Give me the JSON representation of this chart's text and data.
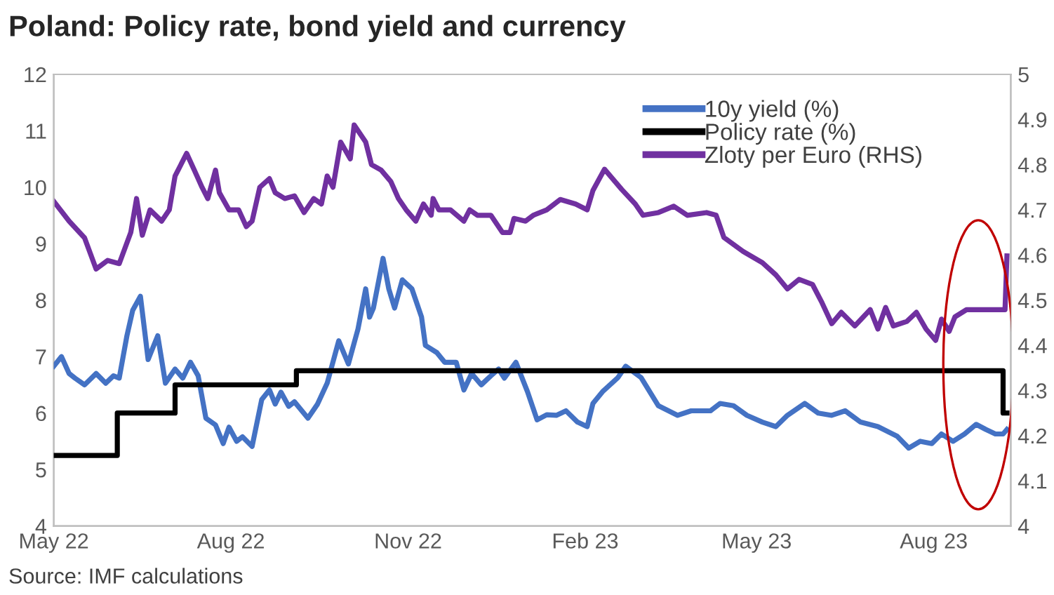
{
  "chart_data": {
    "type": "line",
    "title": "Poland: Policy rate, bond yield and currency",
    "annotations": [
      "Source: IMF calculations"
    ],
    "legend": "top right",
    "grid": false,
    "marker": "none",
    "line_style": "solid",
    "xlim": [
      "2022-05-01",
      "2023-09-10"
    ],
    "xticks": [
      {
        "value": "2022-05-01",
        "label": "May 22"
      },
      {
        "value": "2022-08-01",
        "label": "Aug 22"
      },
      {
        "value": "2022-11-01",
        "label": "Nov 22"
      },
      {
        "value": "2023-02-01",
        "label": "Feb 23"
      },
      {
        "value": "2023-05-01",
        "label": "May 23"
      },
      {
        "value": "2023-08-01",
        "label": "Aug 23"
      }
    ],
    "ylim": [
      4,
      12
    ],
    "yticks": [
      4,
      5,
      6,
      7,
      8,
      9,
      10,
      11,
      12
    ],
    "y2lim": [
      4,
      5
    ],
    "y2ticks": [
      4,
      4.1,
      4.2,
      4.3,
      4.4,
      4.5,
      4.6,
      4.7,
      4.8,
      4.9,
      5
    ],
    "series": [
      {
        "name": "10y yield (%)",
        "color": "#4472c4",
        "x": [
          "2022-05-01",
          "2022-05-05",
          "2022-05-09",
          "2022-05-12",
          "2022-05-17",
          "2022-05-23",
          "2022-05-28",
          "2022-06-01",
          "2022-06-04",
          "2022-06-08",
          "2022-06-11",
          "2022-06-15",
          "2022-06-19",
          "2022-06-24",
          "2022-06-28",
          "2022-07-03",
          "2022-07-07",
          "2022-07-11",
          "2022-07-15",
          "2022-07-19",
          "2022-07-24",
          "2022-07-28",
          "2022-07-31",
          "2022-08-04",
          "2022-08-07",
          "2022-08-12",
          "2022-08-17",
          "2022-08-21",
          "2022-08-24",
          "2022-08-27",
          "2022-08-31",
          "2022-09-03",
          "2022-09-10",
          "2022-09-15",
          "2022-09-20",
          "2022-09-26",
          "2022-10-01",
          "2022-10-06",
          "2022-10-10",
          "2022-10-12",
          "2022-10-14",
          "2022-10-19",
          "2022-10-22",
          "2022-10-25",
          "2022-10-29",
          "2022-11-03",
          "2022-11-08",
          "2022-11-10",
          "2022-11-16",
          "2022-11-20",
          "2022-11-26",
          "2022-11-30",
          "2022-12-04",
          "2022-12-09",
          "2022-12-14",
          "2022-12-18",
          "2022-12-21",
          "2022-12-27",
          "2023-01-02",
          "2023-01-07",
          "2023-01-12",
          "2023-01-17",
          "2023-01-22",
          "2023-01-28",
          "2023-02-02",
          "2023-02-05",
          "2023-02-10",
          "2023-02-18",
          "2023-02-22",
          "2023-03-02",
          "2023-03-11",
          "2023-03-21",
          "2023-03-28",
          "2023-04-07",
          "2023-04-12",
          "2023-04-19",
          "2023-04-26",
          "2023-05-04",
          "2023-05-11",
          "2023-05-17",
          "2023-05-26",
          "2023-06-02",
          "2023-06-09",
          "2023-06-16",
          "2023-06-24",
          "2023-07-03",
          "2023-07-13",
          "2023-07-19",
          "2023-07-25",
          "2023-07-31",
          "2023-08-05",
          "2023-08-11",
          "2023-08-17",
          "2023-08-23",
          "2023-08-28",
          "2023-09-02",
          "2023-09-06",
          "2023-09-08"
        ],
        "values": [
          6.83,
          7.0,
          6.7,
          6.62,
          6.5,
          6.7,
          6.53,
          6.66,
          6.62,
          7.37,
          7.82,
          8.07,
          6.95,
          7.37,
          6.53,
          6.78,
          6.62,
          6.9,
          6.66,
          5.91,
          5.79,
          5.46,
          5.75,
          5.5,
          5.58,
          5.41,
          6.24,
          6.41,
          6.16,
          6.37,
          6.12,
          6.2,
          5.91,
          6.16,
          6.53,
          7.28,
          6.87,
          7.49,
          8.2,
          7.7,
          7.86,
          8.74,
          8.2,
          7.86,
          8.36,
          8.2,
          7.7,
          7.2,
          7.07,
          6.9,
          6.9,
          6.41,
          6.7,
          6.5,
          6.66,
          6.78,
          6.62,
          6.9,
          6.38,
          5.88,
          5.97,
          5.96,
          6.04,
          5.84,
          5.76,
          6.17,
          6.38,
          6.63,
          6.83,
          6.63,
          6.13,
          5.96,
          6.04,
          6.04,
          6.17,
          6.13,
          5.96,
          5.84,
          5.76,
          5.96,
          6.17,
          6.0,
          5.96,
          6.04,
          5.84,
          5.76,
          5.59,
          5.38,
          5.5,
          5.46,
          5.63,
          5.5,
          5.63,
          5.8,
          5.71,
          5.63,
          5.63,
          5.71
        ]
      },
      {
        "name": "Policy rate (%)",
        "color": "#000000",
        "type": "step",
        "x": [
          "2022-05-01",
          "2022-06-03",
          "2022-07-03",
          "2022-09-04",
          "2023-09-06",
          "2023-09-08"
        ],
        "values": [
          5.25,
          6.0,
          6.5,
          6.75,
          6.0,
          6.0
        ]
      },
      {
        "name": "Zloty per Euro (RHS)",
        "color": "#7030a0",
        "axis": "y2",
        "x": [
          "2022-05-01",
          "2022-05-09",
          "2022-05-17",
          "2022-05-23",
          "2022-05-29",
          "2022-06-04",
          "2022-06-10",
          "2022-06-13",
          "2022-06-16",
          "2022-06-20",
          "2022-06-26",
          "2022-06-30",
          "2022-07-03",
          "2022-07-09",
          "2022-07-13",
          "2022-07-17",
          "2022-07-20",
          "2022-07-24",
          "2022-07-26",
          "2022-07-31",
          "2022-08-05",
          "2022-08-09",
          "2022-08-12",
          "2022-08-16",
          "2022-08-21",
          "2022-08-24",
          "2022-08-29",
          "2022-09-03",
          "2022-09-08",
          "2022-09-13",
          "2022-09-17",
          "2022-09-20",
          "2022-09-23",
          "2022-09-27",
          "2022-10-02",
          "2022-10-04",
          "2022-10-10",
          "2022-10-13",
          "2022-10-18",
          "2022-10-23",
          "2022-10-27",
          "2022-10-31",
          "2022-11-05",
          "2022-11-09",
          "2022-11-13",
          "2022-11-14",
          "2022-11-17",
          "2022-11-23",
          "2022-11-30",
          "2022-12-03",
          "2022-12-07",
          "2022-12-14",
          "2022-12-20",
          "2022-12-24",
          "2022-12-26",
          "2023-01-01",
          "2023-01-05",
          "2023-01-12",
          "2023-01-19",
          "2023-01-27",
          "2023-02-02",
          "2023-02-05",
          "2023-02-11",
          "2023-02-20",
          "2023-02-27",
          "2023-03-03",
          "2023-03-11",
          "2023-03-19",
          "2023-03-26",
          "2023-04-05",
          "2023-04-10",
          "2023-04-14",
          "2023-04-24",
          "2023-05-04",
          "2023-05-11",
          "2023-05-17",
          "2023-05-23",
          "2023-05-30",
          "2023-06-04",
          "2023-06-09",
          "2023-06-14",
          "2023-06-21",
          "2023-06-29",
          "2023-07-03",
          "2023-07-07",
          "2023-07-11",
          "2023-07-18",
          "2023-07-23",
          "2023-07-28",
          "2023-08-02",
          "2023-08-05",
          "2023-08-09",
          "2023-08-12",
          "2023-08-18",
          "2023-08-26",
          "2023-09-07",
          "2023-09-08"
        ],
        "values": [
          4.719,
          4.675,
          4.638,
          4.569,
          4.588,
          4.581,
          4.65,
          4.725,
          4.644,
          4.7,
          4.675,
          4.7,
          4.775,
          4.825,
          4.788,
          4.75,
          4.725,
          4.788,
          4.738,
          4.7,
          4.7,
          4.663,
          4.675,
          4.75,
          4.769,
          4.738,
          4.725,
          4.731,
          4.694,
          4.725,
          4.713,
          4.775,
          4.75,
          4.85,
          4.813,
          4.888,
          4.85,
          4.8,
          4.788,
          4.763,
          4.725,
          4.7,
          4.675,
          4.713,
          4.688,
          4.725,
          4.7,
          4.7,
          4.675,
          4.7,
          4.688,
          4.688,
          4.65,
          4.65,
          4.681,
          4.675,
          4.688,
          4.7,
          4.723,
          4.713,
          4.7,
          4.743,
          4.79,
          4.745,
          4.713,
          4.688,
          4.694,
          4.708,
          4.688,
          4.694,
          4.688,
          4.639,
          4.608,
          4.583,
          4.556,
          4.525,
          4.546,
          4.535,
          4.494,
          4.448,
          4.473,
          4.443,
          4.479,
          4.436,
          4.484,
          4.443,
          4.453,
          4.473,
          4.436,
          4.411,
          4.458,
          4.431,
          4.463,
          4.479,
          4.479,
          4.479,
          4.598
        ]
      }
    ]
  }
}
